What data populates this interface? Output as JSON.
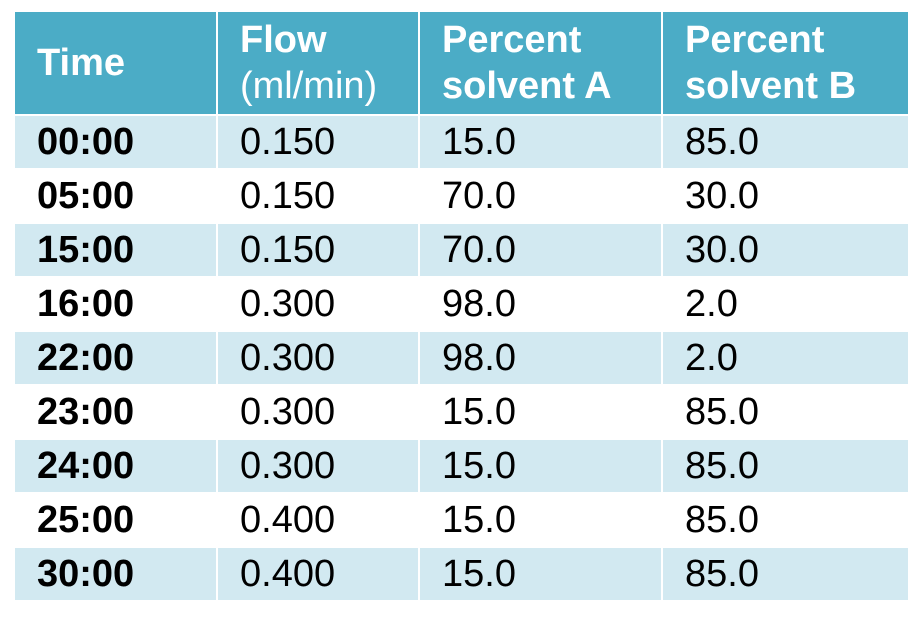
{
  "table": {
    "headers": [
      {
        "line1": "Time",
        "line2": ""
      },
      {
        "line1": "Flow",
        "line2": "(ml/min)"
      },
      {
        "line1": "Percent",
        "line2": "solvent A"
      },
      {
        "line1": "Percent",
        "line2": "solvent B"
      }
    ],
    "rows": [
      {
        "time": "00:00",
        "flow": "0.150",
        "a": "15.0",
        "b": "85.0"
      },
      {
        "time": "05:00",
        "flow": "0.150",
        "a": "70.0",
        "b": "30.0"
      },
      {
        "time": "15:00",
        "flow": "0.150",
        "a": "70.0",
        "b": "30.0"
      },
      {
        "time": "16:00",
        "flow": "0.300",
        "a": "98.0",
        "b": "2.0"
      },
      {
        "time": "22:00",
        "flow": "0.300",
        "a": "98.0",
        "b": "2.0"
      },
      {
        "time": "23:00",
        "flow": "0.300",
        "a": "15.0",
        "b": "85.0"
      },
      {
        "time": "24:00",
        "flow": "0.300",
        "a": "15.0",
        "b": "85.0"
      },
      {
        "time": "25:00",
        "flow": "0.400",
        "a": "15.0",
        "b": "85.0"
      },
      {
        "time": "30:00",
        "flow": "0.400",
        "a": "15.0",
        "b": "85.0"
      }
    ]
  },
  "colors": {
    "header_bg": "#4bacc6",
    "band_bg": "#d2e9f1",
    "row_bg": "#ffffff"
  }
}
